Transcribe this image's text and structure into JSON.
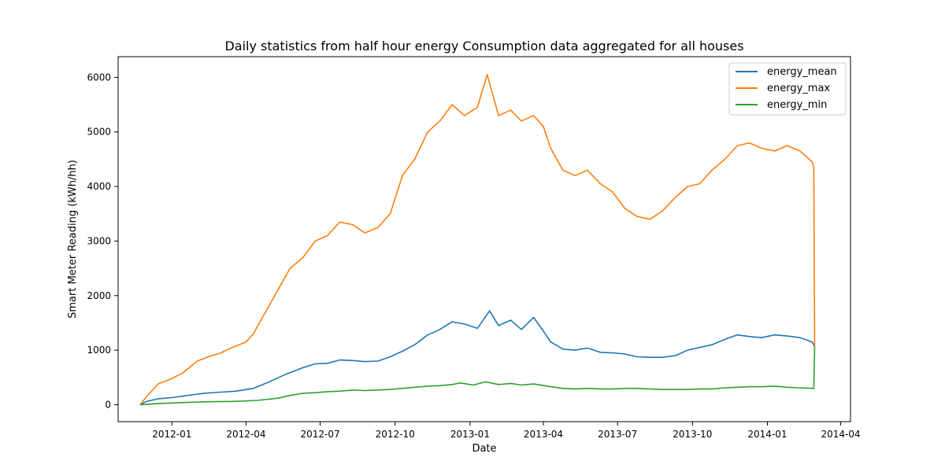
{
  "chart_data": {
    "type": "line",
    "title": "Daily statistics from half hour energy Consumption data aggregated for all houses",
    "xlabel": "Date",
    "ylabel": "Smart Meter Reading (kWh/hh)",
    "xlim": [
      "2011-10-27",
      "2014-04-13"
    ],
    "ylim": [
      -310,
      6380
    ],
    "x_ticks": [
      "2012-01",
      "2012-04",
      "2012-07",
      "2012-10",
      "2013-01",
      "2013-04",
      "2013-07",
      "2013-10",
      "2014-01",
      "2014-04"
    ],
    "y_ticks": [
      0,
      1000,
      2000,
      3000,
      4000,
      5000,
      6000
    ],
    "legend_position": "upper right",
    "grid": false,
    "series": [
      {
        "name": "energy_mean",
        "color": "#1f77b4",
        "points": [
          [
            "2011-11-23",
            0
          ],
          [
            "2011-12-01",
            60
          ],
          [
            "2011-12-15",
            110
          ],
          [
            "2012-01-01",
            130
          ],
          [
            "2012-01-20",
            170
          ],
          [
            "2012-02-10",
            210
          ],
          [
            "2012-03-01",
            230
          ],
          [
            "2012-03-20",
            250
          ],
          [
            "2012-04-10",
            300
          ],
          [
            "2012-05-01",
            430
          ],
          [
            "2012-05-20",
            560
          ],
          [
            "2012-06-10",
            680
          ],
          [
            "2012-06-25",
            750
          ],
          [
            "2012-07-10",
            760
          ],
          [
            "2012-07-25",
            820
          ],
          [
            "2012-08-10",
            810
          ],
          [
            "2012-08-25",
            790
          ],
          [
            "2012-09-10",
            800
          ],
          [
            "2012-09-25",
            880
          ],
          [
            "2012-10-10",
            980
          ],
          [
            "2012-10-25",
            1100
          ],
          [
            "2012-11-10",
            1280
          ],
          [
            "2012-11-25",
            1380
          ],
          [
            "2012-12-10",
            1520
          ],
          [
            "2012-12-25",
            1480
          ],
          [
            "2013-01-10",
            1400
          ],
          [
            "2013-01-25",
            1720
          ],
          [
            "2013-02-05",
            1450
          ],
          [
            "2013-02-20",
            1550
          ],
          [
            "2013-03-05",
            1380
          ],
          [
            "2013-03-20",
            1600
          ],
          [
            "2013-04-01",
            1350
          ],
          [
            "2013-04-10",
            1150
          ],
          [
            "2013-04-25",
            1020
          ],
          [
            "2013-05-10",
            1000
          ],
          [
            "2013-05-25",
            1040
          ],
          [
            "2013-06-10",
            960
          ],
          [
            "2013-06-25",
            950
          ],
          [
            "2013-07-10",
            930
          ],
          [
            "2013-07-25",
            880
          ],
          [
            "2013-08-10",
            870
          ],
          [
            "2013-08-25",
            870
          ],
          [
            "2013-09-10",
            900
          ],
          [
            "2013-09-25",
            1000
          ],
          [
            "2013-10-10",
            1050
          ],
          [
            "2013-10-25",
            1100
          ],
          [
            "2013-11-10",
            1200
          ],
          [
            "2013-11-25",
            1280
          ],
          [
            "2013-12-10",
            1250
          ],
          [
            "2013-12-25",
            1230
          ],
          [
            "2014-01-10",
            1280
          ],
          [
            "2014-01-25",
            1260
          ],
          [
            "2014-02-10",
            1230
          ],
          [
            "2014-02-25",
            1150
          ],
          [
            "2014-02-28",
            1060
          ]
        ]
      },
      {
        "name": "energy_max",
        "color": "#ff7f0e",
        "points": [
          [
            "2011-11-23",
            0
          ],
          [
            "2011-12-01",
            150
          ],
          [
            "2011-12-15",
            380
          ],
          [
            "2012-01-01",
            480
          ],
          [
            "2012-01-15",
            590
          ],
          [
            "2012-02-01",
            800
          ],
          [
            "2012-02-15",
            880
          ],
          [
            "2012-03-01",
            950
          ],
          [
            "2012-03-15",
            1050
          ],
          [
            "2012-04-01",
            1150
          ],
          [
            "2012-04-10",
            1300
          ],
          [
            "2012-04-25",
            1700
          ],
          [
            "2012-05-10",
            2100
          ],
          [
            "2012-05-25",
            2500
          ],
          [
            "2012-06-10",
            2700
          ],
          [
            "2012-06-25",
            3000
          ],
          [
            "2012-07-10",
            3100
          ],
          [
            "2012-07-25",
            3350
          ],
          [
            "2012-08-10",
            3300
          ],
          [
            "2012-08-25",
            3150
          ],
          [
            "2012-09-10",
            3250
          ],
          [
            "2012-09-25",
            3500
          ],
          [
            "2012-10-10",
            4200
          ],
          [
            "2012-10-25",
            4500
          ],
          [
            "2012-11-10",
            5000
          ],
          [
            "2012-11-25",
            5200
          ],
          [
            "2012-12-10",
            5500
          ],
          [
            "2012-12-25",
            5300
          ],
          [
            "2013-01-10",
            5450
          ],
          [
            "2013-01-22",
            6050
          ],
          [
            "2013-02-05",
            5300
          ],
          [
            "2013-02-20",
            5400
          ],
          [
            "2013-03-05",
            5200
          ],
          [
            "2013-03-20",
            5300
          ],
          [
            "2013-04-01",
            5100
          ],
          [
            "2013-04-10",
            4700
          ],
          [
            "2013-04-25",
            4300
          ],
          [
            "2013-05-10",
            4200
          ],
          [
            "2013-05-25",
            4300
          ],
          [
            "2013-06-10",
            4050
          ],
          [
            "2013-06-25",
            3900
          ],
          [
            "2013-07-10",
            3600
          ],
          [
            "2013-07-25",
            3450
          ],
          [
            "2013-08-10",
            3400
          ],
          [
            "2013-08-25",
            3550
          ],
          [
            "2013-09-10",
            3800
          ],
          [
            "2013-09-25",
            4000
          ],
          [
            "2013-10-10",
            4050
          ],
          [
            "2013-10-25",
            4300
          ],
          [
            "2013-11-10",
            4500
          ],
          [
            "2013-11-25",
            4750
          ],
          [
            "2013-12-10",
            4800
          ],
          [
            "2013-12-25",
            4700
          ],
          [
            "2014-01-10",
            4650
          ],
          [
            "2014-01-25",
            4750
          ],
          [
            "2014-02-10",
            4650
          ],
          [
            "2014-02-25",
            4450
          ],
          [
            "2014-02-27",
            4350
          ],
          [
            "2014-02-28",
            1060
          ]
        ]
      },
      {
        "name": "energy_min",
        "color": "#2ca02c",
        "points": [
          [
            "2011-11-23",
            0
          ],
          [
            "2011-12-15",
            20
          ],
          [
            "2012-01-15",
            40
          ],
          [
            "2012-02-15",
            55
          ],
          [
            "2012-03-15",
            60
          ],
          [
            "2012-04-15",
            80
          ],
          [
            "2012-05-10",
            120
          ],
          [
            "2012-05-25",
            170
          ],
          [
            "2012-06-10",
            210
          ],
          [
            "2012-06-25",
            220
          ],
          [
            "2012-07-10",
            240
          ],
          [
            "2012-07-25",
            250
          ],
          [
            "2012-08-10",
            270
          ],
          [
            "2012-08-25",
            260
          ],
          [
            "2012-09-10",
            270
          ],
          [
            "2012-09-25",
            280
          ],
          [
            "2012-10-10",
            300
          ],
          [
            "2012-10-25",
            320
          ],
          [
            "2012-11-10",
            340
          ],
          [
            "2012-11-25",
            350
          ],
          [
            "2012-12-10",
            370
          ],
          [
            "2012-12-20",
            400
          ],
          [
            "2013-01-05",
            360
          ],
          [
            "2013-01-20",
            420
          ],
          [
            "2013-02-05",
            370
          ],
          [
            "2013-02-20",
            390
          ],
          [
            "2013-03-05",
            360
          ],
          [
            "2013-03-20",
            380
          ],
          [
            "2013-04-10",
            330
          ],
          [
            "2013-04-25",
            300
          ],
          [
            "2013-05-10",
            290
          ],
          [
            "2013-05-25",
            300
          ],
          [
            "2013-06-10",
            290
          ],
          [
            "2013-06-25",
            290
          ],
          [
            "2013-07-10",
            300
          ],
          [
            "2013-07-25",
            300
          ],
          [
            "2013-08-10",
            290
          ],
          [
            "2013-08-25",
            280
          ],
          [
            "2013-09-10",
            280
          ],
          [
            "2013-09-25",
            280
          ],
          [
            "2013-10-10",
            290
          ],
          [
            "2013-10-25",
            290
          ],
          [
            "2013-11-10",
            310
          ],
          [
            "2013-11-25",
            320
          ],
          [
            "2013-12-10",
            330
          ],
          [
            "2013-12-25",
            330
          ],
          [
            "2014-01-10",
            340
          ],
          [
            "2014-01-25",
            320
          ],
          [
            "2014-02-10",
            310
          ],
          [
            "2014-02-27",
            300
          ],
          [
            "2014-02-28",
            1060
          ]
        ]
      }
    ]
  }
}
